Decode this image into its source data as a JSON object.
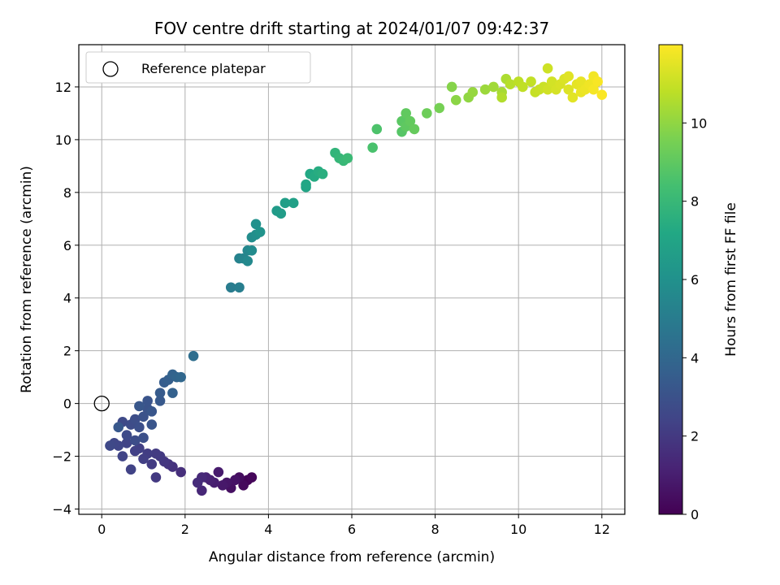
{
  "chart_data": {
    "type": "scatter",
    "title": "FOV centre drift starting at 2024/01/07 09:42:37",
    "xlabel": "Angular distance from reference (arcmin)",
    "ylabel": "Rotation from reference (arcmin)",
    "colorbar_label": "Hours from first FF file",
    "xlim": [
      -0.55,
      12.55
    ],
    "ylim": [
      -4.2,
      13.6
    ],
    "clim": [
      0,
      12
    ],
    "colormap": "viridis",
    "xticks": [
      0,
      2,
      4,
      6,
      8,
      10,
      12
    ],
    "yticks": [
      -4,
      -2,
      0,
      2,
      4,
      6,
      8,
      10,
      12
    ],
    "cticks": [
      0,
      2,
      4,
      6,
      8,
      10
    ],
    "grid": true,
    "legend": {
      "label": "Reference platepar",
      "location": "upper-left",
      "point": [
        0,
        0
      ]
    },
    "points": [
      [
        3.5,
        -2.9,
        0.1
      ],
      [
        3.6,
        -2.8,
        0.2
      ],
      [
        3.4,
        -3.1,
        0.3
      ],
      [
        3.3,
        -2.8,
        0.4
      ],
      [
        3.1,
        -3.2,
        0.5
      ],
      [
        3.2,
        -2.9,
        0.6
      ],
      [
        3.0,
        -3.0,
        0.7
      ],
      [
        2.9,
        -3.1,
        0.8
      ],
      [
        2.8,
        -2.6,
        0.9
      ],
      [
        2.7,
        -3.0,
        1.0
      ],
      [
        2.6,
        -2.9,
        1.1
      ],
      [
        2.5,
        -2.8,
        1.2
      ],
      [
        2.4,
        -3.3,
        1.3
      ],
      [
        2.4,
        -2.8,
        1.4
      ],
      [
        2.3,
        -3.0,
        1.5
      ],
      [
        1.9,
        -2.6,
        1.6
      ],
      [
        1.7,
        -2.4,
        1.7
      ],
      [
        1.6,
        -2.3,
        1.8
      ],
      [
        1.5,
        -2.2,
        1.9
      ],
      [
        1.4,
        -2.0,
        2.0
      ],
      [
        1.3,
        -2.8,
        2.0
      ],
      [
        1.3,
        -1.9,
        2.05
      ],
      [
        1.2,
        -2.3,
        2.1
      ],
      [
        1.1,
        -1.9,
        2.15
      ],
      [
        1.0,
        -2.1,
        2.2
      ],
      [
        0.9,
        -1.7,
        2.25
      ],
      [
        0.8,
        -1.8,
        2.3
      ],
      [
        0.7,
        -2.5,
        2.35
      ],
      [
        0.6,
        -1.5,
        2.4
      ],
      [
        0.5,
        -2.0,
        2.45
      ],
      [
        0.4,
        -1.6,
        2.5
      ],
      [
        0.3,
        -1.5,
        2.55
      ],
      [
        0.2,
        -1.6,
        2.6
      ],
      [
        0.5,
        -0.7,
        2.65
      ],
      [
        0.6,
        -1.2,
        2.7
      ],
      [
        0.7,
        -0.8,
        2.75
      ],
      [
        0.8,
        -1.4,
        2.8
      ],
      [
        0.8,
        -0.6,
        2.85
      ],
      [
        0.9,
        -0.9,
        2.9
      ],
      [
        1.0,
        -1.3,
        2.95
      ],
      [
        1.0,
        -0.5,
        3.0
      ],
      [
        1.1,
        -0.2,
        3.05
      ],
      [
        1.1,
        0.1,
        3.1
      ],
      [
        1.2,
        -0.8,
        3.15
      ],
      [
        1.2,
        -0.3,
        3.2
      ],
      [
        0.9,
        -0.1,
        3.25
      ],
      [
        0.4,
        -0.9,
        3.3
      ],
      [
        1.4,
        0.1,
        3.35
      ],
      [
        1.4,
        0.4,
        3.4
      ],
      [
        1.5,
        0.8,
        3.5
      ],
      [
        1.6,
        0.9,
        3.6
      ],
      [
        1.7,
        0.4,
        3.7
      ],
      [
        1.7,
        1.1,
        3.8
      ],
      [
        1.8,
        1.0,
        3.9
      ],
      [
        1.9,
        1.0,
        4.0
      ],
      [
        2.2,
        1.8,
        4.3
      ],
      [
        3.1,
        4.4,
        5.0
      ],
      [
        3.3,
        4.4,
        5.1
      ],
      [
        3.3,
        5.5,
        5.3
      ],
      [
        3.4,
        5.5,
        5.4
      ],
      [
        3.5,
        5.8,
        5.5
      ],
      [
        3.5,
        5.4,
        5.6
      ],
      [
        3.6,
        5.8,
        5.7
      ],
      [
        3.6,
        6.3,
        5.8
      ],
      [
        3.7,
        6.4,
        5.9
      ],
      [
        3.7,
        6.8,
        6.0
      ],
      [
        3.8,
        6.5,
        6.1
      ],
      [
        4.2,
        7.3,
        6.5
      ],
      [
        4.3,
        7.2,
        6.6
      ],
      [
        4.4,
        7.6,
        6.7
      ],
      [
        4.6,
        7.6,
        6.8
      ],
      [
        4.9,
        8.2,
        7.0
      ],
      [
        4.9,
        8.3,
        7.1
      ],
      [
        5.0,
        8.7,
        7.2
      ],
      [
        5.1,
        8.6,
        7.3
      ],
      [
        5.2,
        8.8,
        7.4
      ],
      [
        5.3,
        8.7,
        7.5
      ],
      [
        5.6,
        9.5,
        7.8
      ],
      [
        5.7,
        9.3,
        7.9
      ],
      [
        5.8,
        9.2,
        8.0
      ],
      [
        5.9,
        9.3,
        8.1
      ],
      [
        6.5,
        9.7,
        8.5
      ],
      [
        6.6,
        10.4,
        8.6
      ],
      [
        7.2,
        10.3,
        8.8
      ],
      [
        7.2,
        10.7,
        8.9
      ],
      [
        7.3,
        10.5,
        9.0
      ],
      [
        7.3,
        11.0,
        9.05
      ],
      [
        7.4,
        10.7,
        9.1
      ],
      [
        7.5,
        10.4,
        9.15
      ],
      [
        7.8,
        11.0,
        9.3
      ],
      [
        8.1,
        11.2,
        9.5
      ],
      [
        8.4,
        12.0,
        9.8
      ],
      [
        8.5,
        11.5,
        9.9
      ],
      [
        8.8,
        11.6,
        10.0
      ],
      [
        8.9,
        11.8,
        10.1
      ],
      [
        9.2,
        11.9,
        10.2
      ],
      [
        9.4,
        12.0,
        10.3
      ],
      [
        9.6,
        11.8,
        10.4
      ],
      [
        9.7,
        12.3,
        10.5
      ],
      [
        9.6,
        11.6,
        10.6
      ],
      [
        9.8,
        12.1,
        10.7
      ],
      [
        10.0,
        12.2,
        10.8
      ],
      [
        10.1,
        12.0,
        10.85
      ],
      [
        10.3,
        12.2,
        10.9
      ],
      [
        10.4,
        11.8,
        10.95
      ],
      [
        10.5,
        11.9,
        11.0
      ],
      [
        10.6,
        12.0,
        11.05
      ],
      [
        10.7,
        12.7,
        11.1
      ],
      [
        10.7,
        11.9,
        11.15
      ],
      [
        10.8,
        12.2,
        11.2
      ],
      [
        10.9,
        11.9,
        11.25
      ],
      [
        11.0,
        12.1,
        11.3
      ],
      [
        11.1,
        12.3,
        11.35
      ],
      [
        11.2,
        11.9,
        11.4
      ],
      [
        11.2,
        12.4,
        11.45
      ],
      [
        11.3,
        11.6,
        11.5
      ],
      [
        11.4,
        12.1,
        11.55
      ],
      [
        11.5,
        12.2,
        11.6
      ],
      [
        11.5,
        11.8,
        11.65
      ],
      [
        11.6,
        11.9,
        11.7
      ],
      [
        11.7,
        12.1,
        11.75
      ],
      [
        11.8,
        12.4,
        11.8
      ],
      [
        11.8,
        11.9,
        11.85
      ],
      [
        11.9,
        12.2,
        11.9
      ],
      [
        12.0,
        11.7,
        11.95
      ]
    ]
  }
}
